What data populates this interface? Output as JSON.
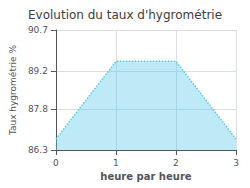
{
  "chart_data": {
    "type": "area",
    "title": "Evolution du taux d'hygrométrie",
    "xlabel": "heure par heure",
    "ylabel": "Taux hygrométrie %",
    "x": [
      0,
      1,
      2,
      3
    ],
    "values": [
      86.7,
      89.55,
      89.55,
      86.7
    ],
    "color": "#5cc8e8",
    "line_style": "dotted",
    "xlim": [
      0,
      3
    ],
    "xticks": [
      0,
      1,
      2,
      3
    ],
    "ylim": [
      86.3,
      90.7
    ],
    "yticks": [
      86.3,
      87.8,
      89.2,
      90.7
    ],
    "grid": true
  }
}
